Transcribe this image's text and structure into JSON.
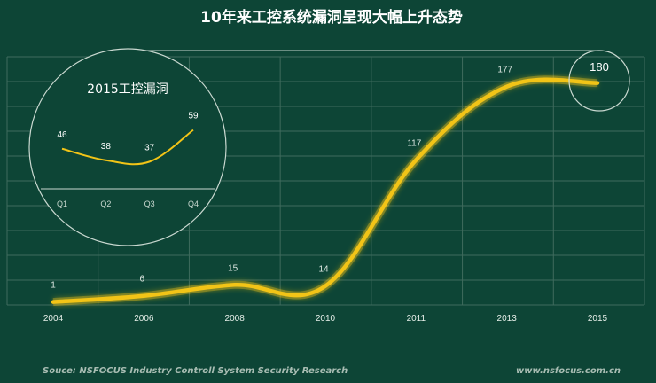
{
  "chart_data": [
    {
      "type": "line",
      "title": "10年来工控系统漏洞呈现大幅上升态势",
      "categories": [
        "2004",
        "2006",
        "2008",
        "2010",
        "2011",
        "2013",
        "2015"
      ],
      "values": [
        1,
        6,
        15,
        14,
        117,
        177,
        180
      ],
      "ylim": [
        0,
        200
      ],
      "grid": true,
      "line_color": "#f2c417"
    },
    {
      "type": "line",
      "title": "2015工控漏洞",
      "categories": [
        "Q1",
        "Q2",
        "Q3",
        "Q4"
      ],
      "values": [
        46,
        38,
        37,
        59
      ],
      "line_color": "#f2c417"
    }
  ],
  "footer": {
    "source": "Souce: NSFOCUS Industry Controll System Security Research",
    "website": "www.nsfocus.com.cn"
  },
  "colors": {
    "background": "#0d4536",
    "grid": "#3f6b5d",
    "line": "#f2c417"
  }
}
